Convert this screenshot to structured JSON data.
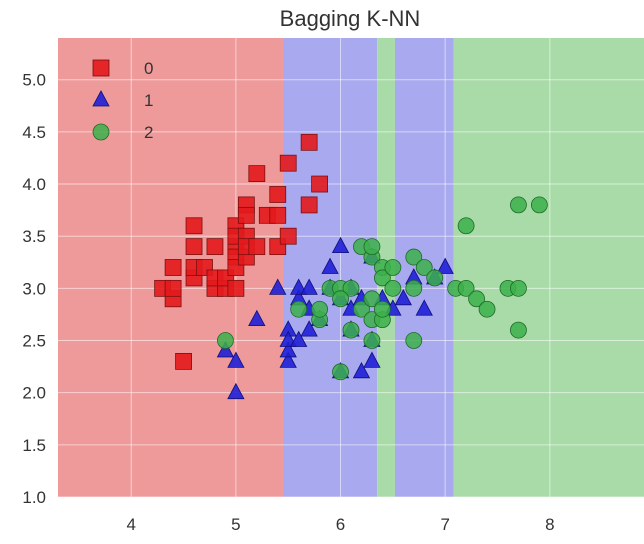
{
  "chart_data": {
    "type": "scatter",
    "title": "Bagging K-NN",
    "xlabel": "",
    "ylabel": "",
    "xlim": [
      3.3,
      8.9
    ],
    "ylim": [
      1.0,
      5.4
    ],
    "xticks": [
      4,
      5,
      6,
      7,
      8
    ],
    "yticks": [
      "1.0",
      "1.5",
      "2.0",
      "2.5",
      "3.0",
      "3.5",
      "4.0",
      "4.5",
      "5.0"
    ],
    "legend_position": "top-left",
    "grid": true,
    "colors": {
      "class_0": "#e31a1c",
      "class_1": "#1f1fd6",
      "class_2": "#3cb04a",
      "region_0": "#ef9a9a",
      "region_1": "#a9a9ef",
      "region_2": "#a9dba9"
    },
    "decision_regions": [
      {
        "class": "0",
        "x": [
          3.3,
          5.45
        ]
      },
      {
        "class": "1",
        "x": [
          5.45,
          6.35
        ]
      },
      {
        "class": "2",
        "x": [
          6.35,
          6.52
        ]
      },
      {
        "class": "1",
        "x": [
          6.52,
          7.08
        ]
      },
      {
        "class": "2",
        "x": [
          7.08,
          8.9
        ]
      }
    ],
    "series": [
      {
        "name": "0",
        "marker": "square",
        "points": [
          [
            4.3,
            3.0
          ],
          [
            4.4,
            2.9
          ],
          [
            4.4,
            3.0
          ],
          [
            4.4,
            3.2
          ],
          [
            4.5,
            2.3
          ],
          [
            4.6,
            3.1
          ],
          [
            4.6,
            3.4
          ],
          [
            4.6,
            3.6
          ],
          [
            4.6,
            3.2
          ],
          [
            4.7,
            3.2
          ],
          [
            4.8,
            3.0
          ],
          [
            4.8,
            3.4
          ],
          [
            4.8,
            3.1
          ],
          [
            4.9,
            3.0
          ],
          [
            4.9,
            3.1
          ],
          [
            5.0,
            3.6
          ],
          [
            5.0,
            3.4
          ],
          [
            5.0,
            3.0
          ],
          [
            5.0,
            3.3
          ],
          [
            5.0,
            3.2
          ],
          [
            5.0,
            3.5
          ],
          [
            5.1,
            3.5
          ],
          [
            5.1,
            3.8
          ],
          [
            5.1,
            3.7
          ],
          [
            5.1,
            3.3
          ],
          [
            5.1,
            3.4
          ],
          [
            5.2,
            3.4
          ],
          [
            5.2,
            4.1
          ],
          [
            5.3,
            3.7
          ],
          [
            5.4,
            3.9
          ],
          [
            5.4,
            3.7
          ],
          [
            5.4,
            3.4
          ],
          [
            5.5,
            4.2
          ],
          [
            5.5,
            3.5
          ],
          [
            5.7,
            4.4
          ],
          [
            5.7,
            3.8
          ],
          [
            5.8,
            4.0
          ]
        ]
      },
      {
        "name": "1",
        "marker": "triangle",
        "points": [
          [
            4.9,
            2.4
          ],
          [
            5.0,
            2.0
          ],
          [
            5.0,
            2.3
          ],
          [
            5.2,
            2.7
          ],
          [
            5.5,
            2.3
          ],
          [
            5.5,
            2.4
          ],
          [
            5.5,
            2.6
          ],
          [
            5.5,
            2.5
          ],
          [
            5.6,
            2.9
          ],
          [
            5.6,
            3.0
          ],
          [
            5.6,
            2.5
          ],
          [
            5.7,
            2.8
          ],
          [
            5.7,
            2.6
          ],
          [
            5.7,
            3.0
          ],
          [
            5.8,
            2.7
          ],
          [
            5.9,
            3.0
          ],
          [
            5.9,
            3.2
          ],
          [
            6.0,
            2.2
          ],
          [
            6.0,
            2.9
          ],
          [
            6.0,
            3.4
          ],
          [
            6.1,
            2.8
          ],
          [
            6.1,
            3.0
          ],
          [
            6.2,
            2.2
          ],
          [
            6.2,
            2.9
          ],
          [
            6.3,
            2.3
          ],
          [
            6.3,
            2.5
          ],
          [
            6.4,
            2.9
          ],
          [
            6.5,
            2.8
          ],
          [
            6.6,
            2.9
          ],
          [
            6.7,
            3.1
          ],
          [
            6.8,
            2.8
          ],
          [
            6.9,
            3.1
          ],
          [
            7.0,
            3.2
          ],
          [
            5.4,
            3.0
          ],
          [
            6.1,
            2.6
          ],
          [
            6.3,
            3.3
          ]
        ]
      },
      {
        "name": "2",
        "marker": "circle",
        "points": [
          [
            4.9,
            2.5
          ],
          [
            5.6,
            2.8
          ],
          [
            5.8,
            2.7
          ],
          [
            5.8,
            2.8
          ],
          [
            5.9,
            3.0
          ],
          [
            6.0,
            2.2
          ],
          [
            6.0,
            3.0
          ],
          [
            6.1,
            3.0
          ],
          [
            6.1,
            2.6
          ],
          [
            6.2,
            2.8
          ],
          [
            6.2,
            3.4
          ],
          [
            6.3,
            2.7
          ],
          [
            6.3,
            2.9
          ],
          [
            6.3,
            2.5
          ],
          [
            6.3,
            3.3
          ],
          [
            6.3,
            3.4
          ],
          [
            6.4,
            2.7
          ],
          [
            6.4,
            3.2
          ],
          [
            6.4,
            3.1
          ],
          [
            6.4,
            2.8
          ],
          [
            6.5,
            3.0
          ],
          [
            6.5,
            3.2
          ],
          [
            6.7,
            2.5
          ],
          [
            6.7,
            3.3
          ],
          [
            6.7,
            3.0
          ],
          [
            6.8,
            3.2
          ],
          [
            6.9,
            3.1
          ],
          [
            7.1,
            3.0
          ],
          [
            7.2,
            3.6
          ],
          [
            7.2,
            3.0
          ],
          [
            7.3,
            2.9
          ],
          [
            7.4,
            2.8
          ],
          [
            7.6,
            3.0
          ],
          [
            7.7,
            3.8
          ],
          [
            7.7,
            2.6
          ],
          [
            7.7,
            3.0
          ],
          [
            7.9,
            3.8
          ],
          [
            6.0,
            2.9
          ]
        ]
      }
    ]
  }
}
